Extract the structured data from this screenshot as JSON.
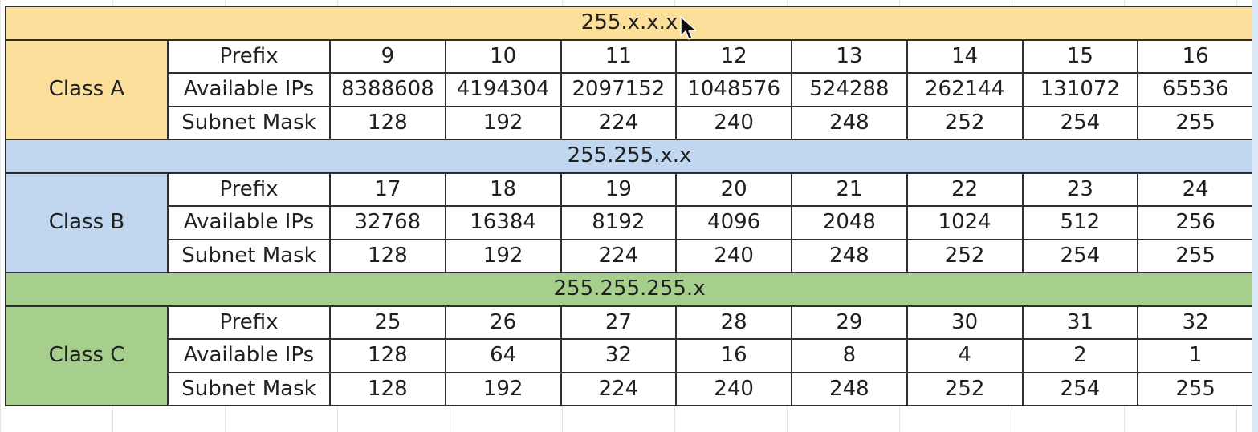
{
  "columns_note": "",
  "sections": [
    {
      "band": "255.x.x.x",
      "class_label": "Class A",
      "color": "#fbdf9a",
      "rows": [
        {
          "label": "Prefix",
          "values": [
            "9",
            "10",
            "11",
            "12",
            "13",
            "14",
            "15",
            "16"
          ]
        },
        {
          "label": "Available IPs",
          "values": [
            "8388608",
            "4194304",
            "2097152",
            "1048576",
            "524288",
            "262144",
            "131072",
            "65536"
          ]
        },
        {
          "label": "Subnet Mask",
          "values": [
            "128",
            "192",
            "224",
            "240",
            "248",
            "252",
            "254",
            "255"
          ]
        }
      ]
    },
    {
      "band": "255.255.x.x",
      "class_label": "Class B",
      "color": "#c0d7ef",
      "rows": [
        {
          "label": "Prefix",
          "values": [
            "17",
            "18",
            "19",
            "20",
            "21",
            "22",
            "23",
            "24"
          ]
        },
        {
          "label": "Available IPs",
          "values": [
            "32768",
            "16384",
            "8192",
            "4096",
            "2048",
            "1024",
            "512",
            "256"
          ]
        },
        {
          "label": "Subnet Mask",
          "values": [
            "128",
            "192",
            "224",
            "240",
            "248",
            "252",
            "254",
            "255"
          ]
        }
      ]
    },
    {
      "band": "255.255.255.x",
      "class_label": "Class C",
      "color": "#a6cf8d",
      "rows": [
        {
          "label": "Prefix",
          "values": [
            "25",
            "26",
            "27",
            "28",
            "29",
            "30",
            "31",
            "32"
          ]
        },
        {
          "label": "Available IPs",
          "values": [
            "128",
            "64",
            "32",
            "16",
            "8",
            "4",
            "2",
            "1"
          ]
        },
        {
          "label": "Subnet Mask",
          "values": [
            "128",
            "192",
            "224",
            "240",
            "248",
            "252",
            "254",
            "255"
          ]
        }
      ]
    }
  ],
  "icons": {
    "cursor": "mouse-pointer-icon"
  }
}
